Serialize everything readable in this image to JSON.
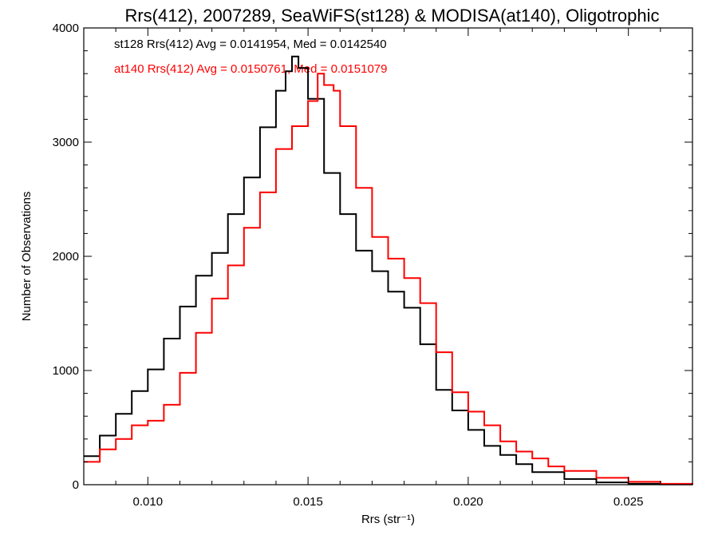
{
  "chart_data": {
    "type": "line",
    "title": "Rrs(412), 2007289, SeaWiFS(st128) & MODISA(at140), Oligotrophic",
    "xlabel": "Rrs (str⁻¹)",
    "ylabel": "Number of Observations",
    "xlim": [
      0.008,
      0.027
    ],
    "ylim": [
      0,
      4000
    ],
    "xticks": [
      0.01,
      0.015,
      0.02,
      0.025
    ],
    "xtick_labels": [
      "0.010",
      "0.015",
      "0.020",
      "0.025"
    ],
    "yticks": [
      0,
      1000,
      2000,
      3000,
      4000
    ],
    "ytick_labels": [
      "0",
      "1000",
      "2000",
      "3000",
      "4000"
    ],
    "grid": false,
    "legend_position": "top-left",
    "series": [
      {
        "label": "st128 Rrs(412) Avg = 0.0141954, Med = 0.0142540",
        "color": "#000000",
        "step": true,
        "x": [
          0.008,
          0.0085,
          0.009,
          0.0095,
          0.01,
          0.0105,
          0.011,
          0.0115,
          0.012,
          0.0125,
          0.013,
          0.0135,
          0.014,
          0.0143,
          0.0145,
          0.0147,
          0.015,
          0.0155,
          0.016,
          0.0165,
          0.017,
          0.0175,
          0.018,
          0.0185,
          0.019,
          0.0195,
          0.02,
          0.0205,
          0.021,
          0.0215,
          0.022,
          0.023,
          0.024,
          0.025,
          0.026,
          0.027
        ],
        "y": [
          250,
          430,
          620,
          820,
          1010,
          1280,
          1560,
          1830,
          2030,
          2370,
          2690,
          3130,
          3450,
          3620,
          3750,
          3650,
          3380,
          2730,
          2370,
          2050,
          1870,
          1690,
          1550,
          1230,
          830,
          650,
          480,
          340,
          260,
          180,
          110,
          50,
          20,
          8,
          3,
          0
        ]
      },
      {
        "label": "at140 Rrs(412) Avg = 0.0150761, Med = 0.0151079",
        "color": "#ff0000",
        "step": true,
        "x": [
          0.008,
          0.0085,
          0.009,
          0.0095,
          0.01,
          0.0105,
          0.011,
          0.0115,
          0.012,
          0.0125,
          0.013,
          0.0135,
          0.014,
          0.0145,
          0.015,
          0.0153,
          0.0155,
          0.0158,
          0.016,
          0.0165,
          0.017,
          0.0175,
          0.018,
          0.0185,
          0.019,
          0.0195,
          0.02,
          0.0205,
          0.021,
          0.0215,
          0.022,
          0.0225,
          0.023,
          0.024,
          0.025,
          0.026,
          0.027
        ],
        "y": [
          200,
          310,
          400,
          520,
          560,
          700,
          980,
          1330,
          1630,
          1920,
          2250,
          2560,
          2940,
          3140,
          3360,
          3600,
          3500,
          3450,
          3140,
          2600,
          2170,
          1980,
          1810,
          1590,
          1160,
          810,
          640,
          520,
          380,
          290,
          230,
          160,
          120,
          60,
          25,
          8,
          0
        ]
      }
    ]
  }
}
